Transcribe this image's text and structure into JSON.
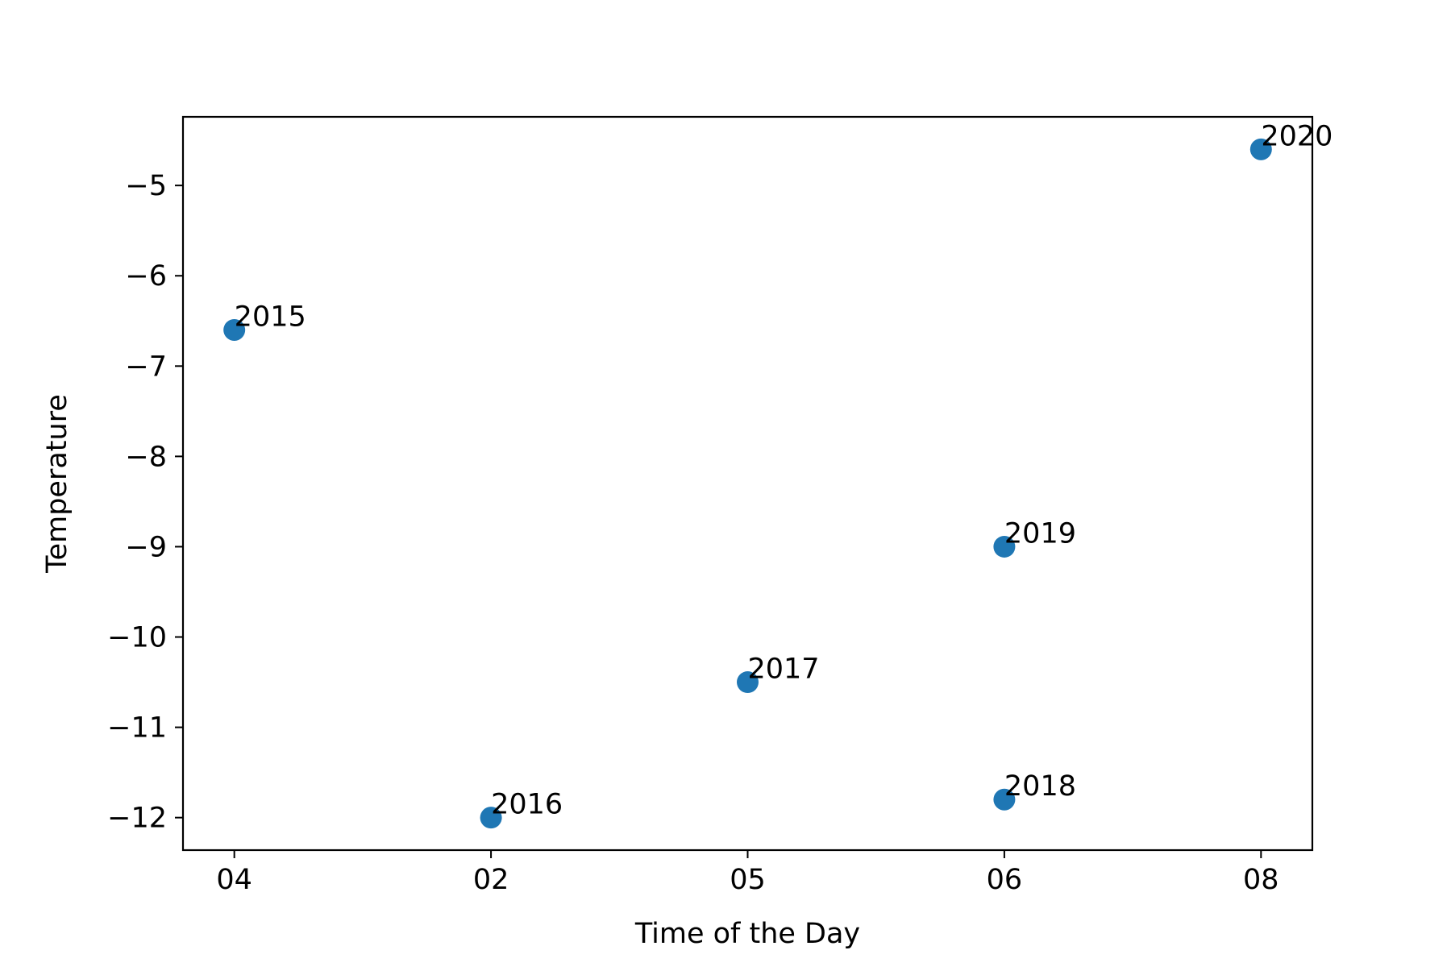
{
  "chart_data": {
    "type": "scatter",
    "title": "",
    "xlabel": "Time of the Day",
    "ylabel": "Temperature",
    "x_categories": [
      "04",
      "02",
      "05",
      "06",
      "08"
    ],
    "x_ticks": [
      "04",
      "02",
      "05",
      "06",
      "08"
    ],
    "y_ticks": [
      -5,
      -6,
      -7,
      -8,
      -9,
      -10,
      -11,
      -12
    ],
    "ylim": [
      -12.36,
      -4.24
    ],
    "grid": false,
    "legend": "none",
    "marker_color": "#1f77b4",
    "points": [
      {
        "x": "04",
        "y": -6.6,
        "label": "2015"
      },
      {
        "x": "02",
        "y": -12.0,
        "label": "2016"
      },
      {
        "x": "05",
        "y": -10.5,
        "label": "2017"
      },
      {
        "x": "06",
        "y": -11.8,
        "label": "2018"
      },
      {
        "x": "06",
        "y": -9.0,
        "label": "2019"
      },
      {
        "x": "08",
        "y": -4.6,
        "label": "2020"
      }
    ]
  }
}
